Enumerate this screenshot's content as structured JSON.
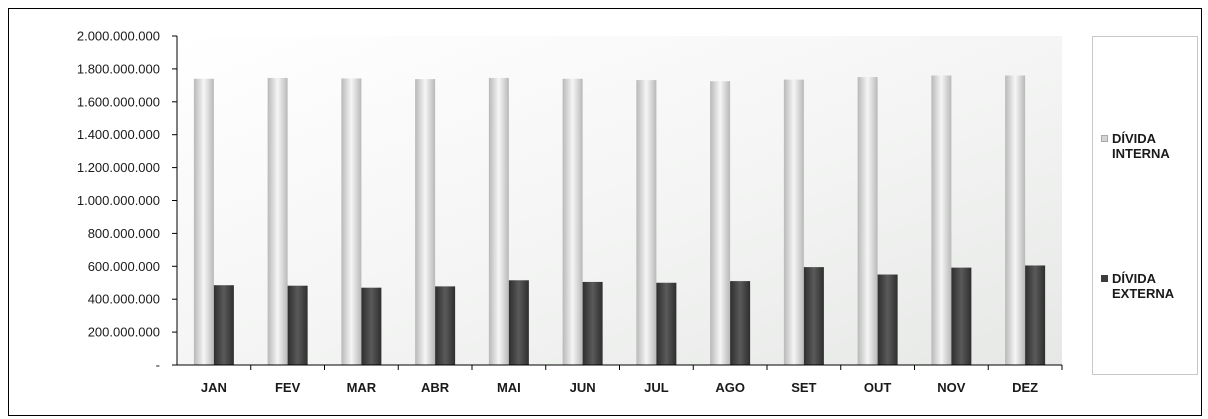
{
  "chart_data": {
    "type": "bar",
    "title": "",
    "xlabel": "",
    "ylabel": "",
    "categories": [
      "JAN",
      "FEV",
      "MAR",
      "ABR",
      "MAI",
      "JUN",
      "JUL",
      "AGO",
      "SET",
      "OUT",
      "NOV",
      "DEZ"
    ],
    "ylim": [
      0,
      2000000000
    ],
    "yticks": [
      {
        "value": 0,
        "label": "-"
      },
      {
        "value": 200000000,
        "label": "200.000.000"
      },
      {
        "value": 400000000,
        "label": "400.000.000"
      },
      {
        "value": 600000000,
        "label": "600.000.000"
      },
      {
        "value": 800000000,
        "label": "800.000.000"
      },
      {
        "value": 1000000000,
        "label": "1.000.000.000"
      },
      {
        "value": 1200000000,
        "label": "1.200.000.000"
      },
      {
        "value": 1400000000,
        "label": "1.400.000.000"
      },
      {
        "value": 1600000000,
        "label": "1.600.000.000"
      },
      {
        "value": 1800000000,
        "label": "1.800.000.000"
      },
      {
        "value": 2000000000,
        "label": "2.000.000.000"
      }
    ],
    "series": [
      {
        "name_lines": [
          "DÍVIDA",
          "INTERNA"
        ],
        "color": "#d4d4d4",
        "values": [
          1740000000,
          1745000000,
          1742000000,
          1738000000,
          1745000000,
          1740000000,
          1732000000,
          1725000000,
          1735000000,
          1750000000,
          1760000000,
          1760000000
        ]
      },
      {
        "name_lines": [
          "DÍVIDA",
          "EXTERNA"
        ],
        "color": "#3c3c3c",
        "values": [
          485000000,
          482000000,
          470000000,
          478000000,
          515000000,
          505000000,
          500000000,
          510000000,
          595000000,
          550000000,
          592000000,
          605000000
        ]
      }
    ],
    "grid": false,
    "legend_position": "right"
  }
}
